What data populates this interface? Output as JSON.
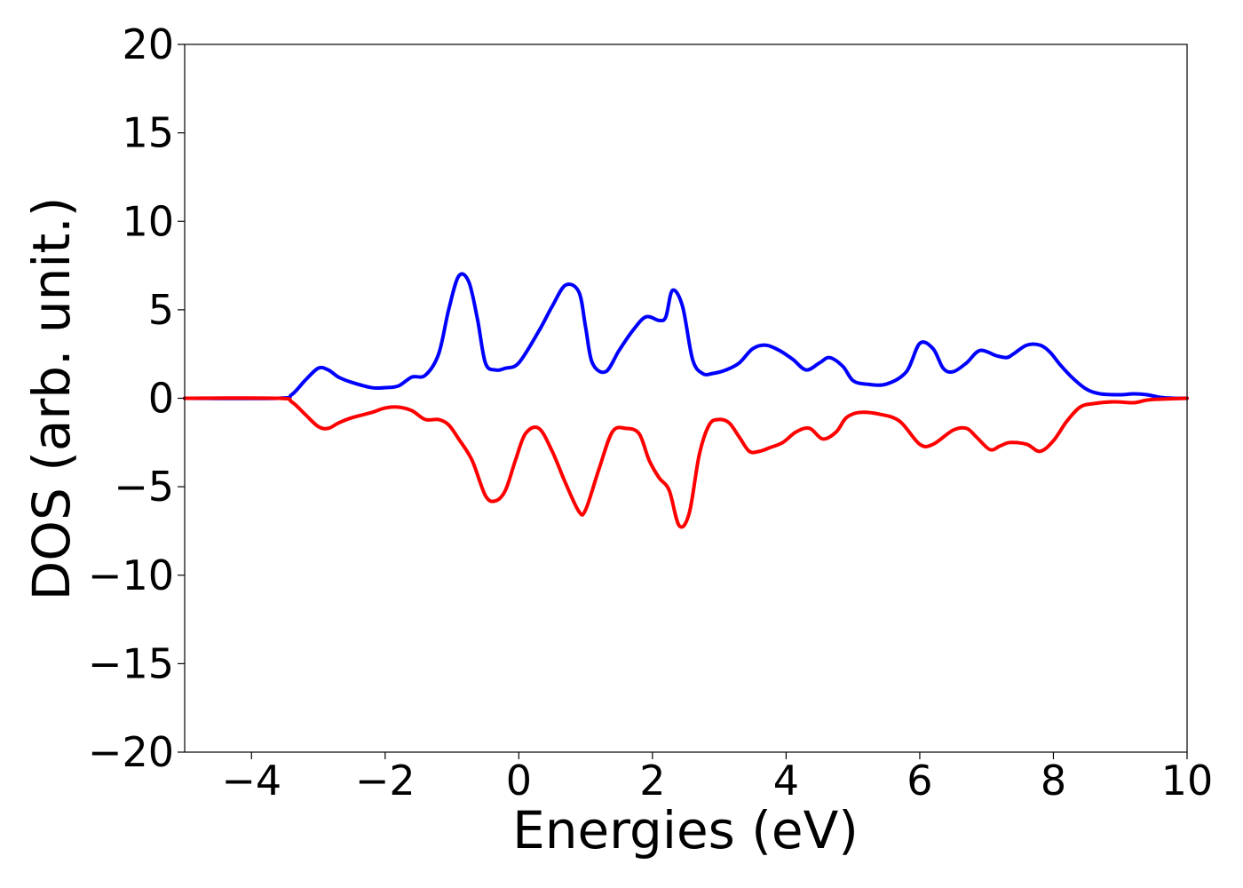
{
  "chart_data": {
    "type": "line",
    "xlabel": "Energies (eV)",
    "ylabel": "DOS (arb. unit.)",
    "xlim": [
      -5,
      10
    ],
    "ylim": [
      -20,
      20
    ],
    "xticks": [
      -4,
      -2,
      0,
      2,
      4,
      6,
      8,
      10
    ],
    "yticks": [
      -20,
      -15,
      -10,
      -5,
      0,
      5,
      10,
      15,
      20
    ],
    "xtick_labels": [
      "−4",
      "−2",
      "0",
      "2",
      "4",
      "6",
      "8",
      "10"
    ],
    "ytick_labels": [
      "−20",
      "−15",
      "−10",
      "−5",
      "0",
      "5",
      "10",
      "15",
      "20"
    ],
    "grid": false,
    "legend": "none",
    "series": [
      {
        "color": "#0000ff",
        "x": [
          -5,
          -3.6,
          -3.4,
          -3.2,
          -3.0,
          -2.85,
          -2.7,
          -2.5,
          -2.2,
          -2.0,
          -1.8,
          -1.6,
          -1.4,
          -1.2,
          -1.05,
          -0.9,
          -0.75,
          -0.62,
          -0.5,
          -0.35,
          -0.2,
          0.0,
          0.3,
          0.5,
          0.7,
          0.9,
          1.0,
          1.1,
          1.3,
          1.5,
          1.7,
          1.9,
          2.1,
          2.2,
          2.3,
          2.45,
          2.6,
          2.75,
          2.9,
          3.1,
          3.3,
          3.5,
          3.7,
          3.9,
          4.1,
          4.3,
          4.5,
          4.65,
          4.85,
          5.0,
          5.2,
          5.5,
          5.8,
          6.0,
          6.2,
          6.35,
          6.5,
          6.7,
          6.9,
          7.15,
          7.3,
          7.4,
          7.6,
          7.8,
          7.95,
          8.1,
          8.3,
          8.5,
          8.7,
          9.0,
          9.2,
          9.4,
          9.6,
          9.8,
          10
        ],
        "values": [
          0,
          0,
          0.2,
          1.0,
          1.7,
          1.6,
          1.2,
          0.9,
          0.6,
          0.6,
          0.7,
          1.2,
          1.3,
          2.5,
          5.0,
          6.9,
          6.6,
          4.5,
          2.0,
          1.6,
          1.7,
          2.0,
          3.8,
          5.2,
          6.4,
          6.0,
          4.0,
          2.0,
          1.5,
          2.7,
          3.8,
          4.6,
          4.4,
          4.6,
          6.1,
          5.2,
          2.2,
          1.4,
          1.4,
          1.6,
          2.0,
          2.8,
          3.0,
          2.7,
          2.2,
          1.6,
          2.0,
          2.3,
          1.8,
          1.0,
          0.8,
          0.8,
          1.5,
          3.1,
          2.8,
          1.7,
          1.5,
          2.0,
          2.7,
          2.4,
          2.3,
          2.5,
          3.0,
          3.0,
          2.6,
          1.9,
          1.1,
          0.5,
          0.25,
          0.2,
          0.25,
          0.2,
          0.05,
          0,
          0
        ]
      },
      {
        "color": "#ff0000",
        "x": [
          -5,
          -3.6,
          -3.4,
          -3.2,
          -3.0,
          -2.85,
          -2.7,
          -2.5,
          -2.2,
          -2.0,
          -1.8,
          -1.6,
          -1.4,
          -1.2,
          -1.05,
          -0.9,
          -0.7,
          -0.5,
          -0.35,
          -0.2,
          -0.05,
          0.1,
          0.3,
          0.5,
          0.7,
          0.9,
          1.0,
          1.2,
          1.4,
          1.6,
          1.8,
          1.95,
          2.1,
          2.25,
          2.4,
          2.55,
          2.7,
          2.85,
          3.0,
          3.15,
          3.3,
          3.45,
          3.6,
          3.75,
          3.95,
          4.15,
          4.35,
          4.55,
          4.75,
          4.9,
          5.1,
          5.4,
          5.7,
          6.0,
          6.2,
          6.5,
          6.7,
          6.85,
          7.05,
          7.2,
          7.35,
          7.6,
          7.8,
          8.0,
          8.2,
          8.4,
          8.6,
          8.9,
          9.2,
          9.4,
          9.6,
          10
        ],
        "values": [
          0,
          0,
          -0.2,
          -0.9,
          -1.6,
          -1.7,
          -1.4,
          -1.1,
          -0.8,
          -0.55,
          -0.5,
          -0.7,
          -1.2,
          -1.2,
          -1.5,
          -2.3,
          -3.5,
          -5.5,
          -5.8,
          -5.2,
          -3.5,
          -2.0,
          -1.7,
          -3.0,
          -4.8,
          -6.4,
          -6.3,
          -4.0,
          -1.9,
          -1.7,
          -2.0,
          -3.5,
          -4.5,
          -5.2,
          -7.2,
          -6.5,
          -3.2,
          -1.5,
          -1.2,
          -1.4,
          -2.2,
          -3.0,
          -3.0,
          -2.8,
          -2.5,
          -1.9,
          -1.7,
          -2.3,
          -1.9,
          -1.1,
          -0.8,
          -0.9,
          -1.3,
          -2.6,
          -2.6,
          -1.8,
          -1.7,
          -2.2,
          -2.9,
          -2.7,
          -2.5,
          -2.6,
          -3.0,
          -2.4,
          -1.3,
          -0.5,
          -0.3,
          -0.2,
          -0.25,
          -0.1,
          -0.05,
          0
        ]
      }
    ]
  }
}
